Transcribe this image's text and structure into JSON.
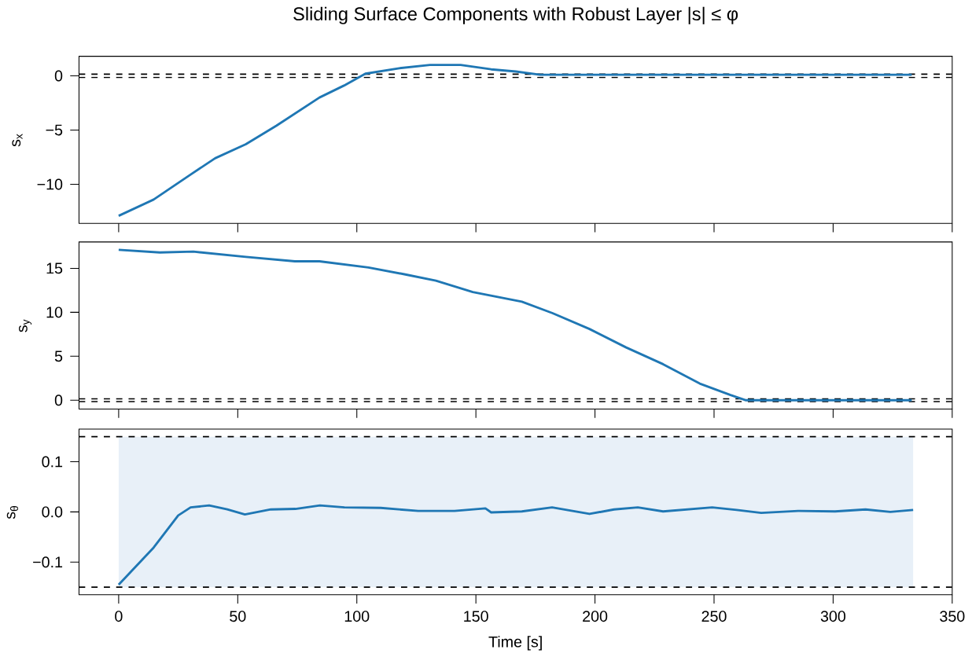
{
  "chart_data": [
    {
      "type": "line",
      "title": "Sliding Surface Components with Robust Layer |s| ≤ φ",
      "ylabel": "s$_{x}$",
      "color": "#1f77b4",
      "tick_labels": "y",
      "x": [
        0,
        14.7,
        30.2,
        40.5,
        53.4,
        66.2,
        84.3,
        94.6,
        103.6,
        117.8,
        130.7,
        143.6,
        156.4,
        166.8,
        177,
        200,
        250,
        300,
        333
      ],
      "values": [
        -12.9,
        -11.4,
        -9.1,
        -7.6,
        -6.3,
        -4.6,
        -2.0,
        -0.9,
        0.2,
        0.7,
        1.0,
        1.0,
        0.6,
        0.4,
        0.1,
        0.1,
        0.1,
        0.1,
        0.1
      ],
      "xlim": [
        -16.65,
        350
      ],
      "xticks": [
        0,
        50,
        100,
        150,
        200,
        250,
        300,
        350
      ],
      "ylim": [
        -13.6,
        1.8
      ],
      "yticks": [
        {
          "value": -10,
          "label": "−10"
        },
        {
          "value": -5,
          "label": "−5"
        },
        0
      ],
      "ref_lines": [
        {
          "axis": "y",
          "value": 0.15,
          "line_style": "dashed",
          "color": "#000000"
        },
        {
          "axis": "y",
          "value": -0.15,
          "line_style": "dashed",
          "color": "#000000"
        }
      ]
    },
    {
      "type": "line",
      "ylabel": "s$_{y}$",
      "color": "#1f77b4",
      "tick_labels": "y",
      "x": [
        0,
        17.3,
        31.4,
        53.4,
        74,
        84.3,
        104.9,
        120.4,
        133.2,
        148.7,
        169.3,
        182.2,
        197.7,
        213.1,
        228.6,
        244,
        256.9,
        263.4,
        300,
        333
      ],
      "values": [
        17.1,
        16.8,
        16.9,
        16.3,
        15.8,
        15.8,
        15.1,
        14.3,
        13.6,
        12.3,
        11.2,
        9.9,
        8.1,
        6.0,
        4.1,
        1.9,
        0.6,
        0.0,
        0.0,
        0.0
      ],
      "xlim": [
        -16.65,
        350
      ],
      "xticks": [
        0,
        50,
        100,
        150,
        200,
        250,
        300,
        350
      ],
      "ylim": [
        -1.0,
        18
      ],
      "yticks": [
        0,
        5,
        10,
        15
      ],
      "ref_lines": [
        {
          "axis": "y",
          "value": 0.15,
          "line_style": "dashed",
          "color": "#000000"
        },
        {
          "axis": "y",
          "value": -0.15,
          "line_style": "dashed",
          "color": "#000000"
        }
      ]
    },
    {
      "type": "line",
      "ylabel": "s$_{θ}$",
      "xlabel": "Time [s]",
      "color": "#1f77b4",
      "x": [
        0,
        14.7,
        25,
        30.2,
        38,
        45.6,
        53,
        63.9,
        74.2,
        84.5,
        94.8,
        110,
        125.8,
        141,
        154,
        156.4,
        169.3,
        182,
        197.7,
        208,
        218,
        228.6,
        249.2,
        259.5,
        269.8,
        285.3,
        300.8,
        313.6,
        324,
        333.6
      ],
      "values": [
        -0.145,
        -0.071,
        -0.007,
        0.009,
        0.013,
        0.005,
        -0.005,
        0.005,
        0.006,
        0.013,
        0.009,
        0.008,
        0.002,
        0.002,
        0.007,
        -0.001,
        0.001,
        0.009,
        -0.004,
        0.005,
        0.009,
        0.001,
        0.009,
        0.004,
        -0.002,
        0.002,
        0.001,
        0.005,
        0.0,
        0.004
      ],
      "xlim": [
        -16.65,
        350
      ],
      "xticks": [
        0,
        50,
        100,
        150,
        200,
        250,
        300,
        350
      ],
      "ylim": [
        -0.165,
        0.165
      ],
      "yticks": [
        {
          "value": -0.1,
          "label": "−0.1"
        },
        {
          "value": 0,
          "label": "0.0"
        },
        {
          "value": 0.1,
          "label": "0.1"
        }
      ],
      "ref_lines": [
        {
          "axis": "y",
          "value": 0.15,
          "line_style": "dashed",
          "color": "#000000"
        },
        {
          "axis": "y",
          "value": -0.15,
          "line_style": "dashed",
          "color": "#000000"
        }
      ],
      "bands": [
        {
          "axis": "y",
          "from": -0.15,
          "to": 0.15,
          "color": "#e8f0f8"
        }
      ]
    }
  ]
}
